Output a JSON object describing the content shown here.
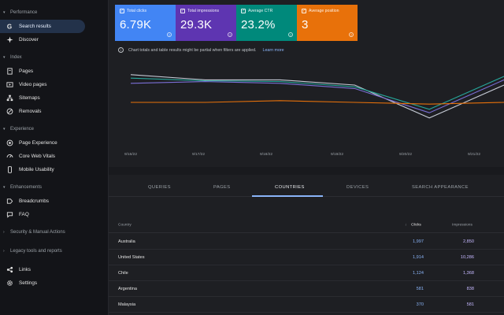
{
  "sidebar": {
    "sections": [
      {
        "label": "Performance"
      },
      {
        "label": "Index"
      },
      {
        "label": "Experience"
      },
      {
        "label": "Enhancements"
      },
      {
        "label": "Security & Manual Actions"
      },
      {
        "label": "Legacy tools and reports"
      }
    ],
    "items": [
      {
        "label": "Search results",
        "icon": "google-g-icon"
      },
      {
        "label": "Discover",
        "icon": "discover-icon"
      },
      {
        "label": "Pages",
        "icon": "pages-icon"
      },
      {
        "label": "Video pages",
        "icon": "video-pages-icon"
      },
      {
        "label": "Sitemaps",
        "icon": "sitemaps-icon"
      },
      {
        "label": "Removals",
        "icon": "removals-icon"
      },
      {
        "label": "Page Experience",
        "icon": "page-experience-icon"
      },
      {
        "label": "Core Web Vitals",
        "icon": "core-web-vitals-icon"
      },
      {
        "label": "Mobile Usability",
        "icon": "mobile-usability-icon"
      },
      {
        "label": "Breadcrumbs",
        "icon": "breadcrumbs-icon"
      },
      {
        "label": "FAQ",
        "icon": "faq-icon"
      },
      {
        "label": "Links",
        "icon": "links-icon"
      },
      {
        "label": "Settings",
        "icon": "settings-icon"
      }
    ]
  },
  "metrics": [
    {
      "label": "Total clicks",
      "value": "6.79K",
      "color": "#4285f4"
    },
    {
      "label": "Total impressions",
      "value": "29.3K",
      "color": "#5e35b1"
    },
    {
      "label": "Average CTR",
      "value": "23.2%",
      "color": "#00897b"
    },
    {
      "label": "Average position",
      "value": "3",
      "color": "#e8710a"
    }
  ],
  "notice": {
    "text": "Chart totals and table results might be partial when filters are applied.",
    "link": "Learn more"
  },
  "chart_data": {
    "type": "line",
    "x": [
      "9/16/22",
      "9/17/22",
      "9/18/22",
      "9/19/22",
      "9/20/22",
      "9/21/22"
    ],
    "series": [
      {
        "color": "#c6cbd6",
        "values": [
          0.92,
          0.86,
          0.86,
          0.8,
          0.42,
          0.8
        ]
      },
      {
        "color": "#7b6fd6",
        "values": [
          0.82,
          0.84,
          0.82,
          0.76,
          0.48,
          0.86
        ]
      },
      {
        "color": "#26a69a",
        "values": [
          0.88,
          0.85,
          0.84,
          0.78,
          0.52,
          0.9
        ]
      },
      {
        "color": "#e8710a",
        "values": [
          0.6,
          0.6,
          0.62,
          0.6,
          0.58,
          0.6
        ]
      }
    ]
  },
  "tabs": [
    "QUERIES",
    "PAGES",
    "COUNTRIES",
    "DEVICES",
    "SEARCH APPEARANCE"
  ],
  "table": {
    "headers": {
      "country": "Country",
      "clicks": "Clicks",
      "impressions": "Impressions"
    },
    "rows": [
      {
        "country": "Australia",
        "clicks": "1,997",
        "impressions": "2,850"
      },
      {
        "country": "United States",
        "clicks": "1,914",
        "impressions": "10,286"
      },
      {
        "country": "Chile",
        "clicks": "1,124",
        "impressions": "1,368"
      },
      {
        "country": "Argentina",
        "clicks": "581",
        "impressions": "838"
      },
      {
        "country": "Malaysia",
        "clicks": "370",
        "impressions": "581"
      }
    ]
  }
}
